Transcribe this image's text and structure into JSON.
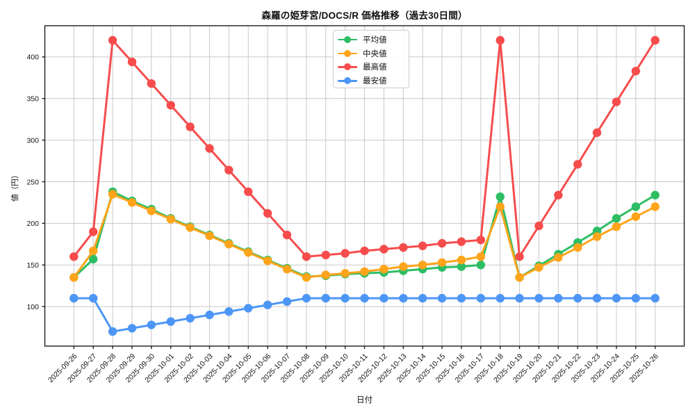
{
  "chart_data": {
    "type": "line",
    "title": "森羅の姫芽宮/DOCS/R 価格推移（過去30日間）",
    "xlabel": "日付",
    "ylabel": "値（円）",
    "x": [
      "2025-09-26",
      "2025-09-27",
      "2025-09-28",
      "2025-09-29",
      "2025-09-30",
      "2025-10-01",
      "2025-10-02",
      "2025-10-03",
      "2025-10-04",
      "2025-10-05",
      "2025-10-06",
      "2025-10-07",
      "2025-10-08",
      "2025-10-09",
      "2025-10-10",
      "2025-10-11",
      "2025-10-12",
      "2025-10-13",
      "2025-10-14",
      "2025-10-15",
      "2025-10-16",
      "2025-10-17",
      "2025-10-18",
      "2025-10-19",
      "2025-10-20",
      "2025-10-21",
      "2025-10-22",
      "2025-10-23",
      "2025-10-24",
      "2025-10-25",
      "2025-10-26"
    ],
    "series": [
      {
        "name": "平均値",
        "key": "average",
        "color": "#2dbe64",
        "values": [
          135,
          157,
          238,
          227,
          217,
          206,
          196,
          186,
          176,
          166,
          156,
          146,
          136,
          137,
          139,
          140,
          141,
          143,
          145,
          147,
          148,
          150,
          232,
          135,
          149,
          163,
          177,
          191,
          206,
          220,
          234
        ]
      },
      {
        "name": "中央値",
        "key": "median",
        "color": "#ffa41b",
        "values": [
          135,
          167,
          235,
          225,
          215,
          205,
          195,
          185,
          175,
          165,
          155,
          145,
          135,
          138,
          140,
          142,
          145,
          148,
          150,
          153,
          156,
          160,
          220,
          135,
          147,
          159,
          171,
          184,
          196,
          208,
          220
        ]
      },
      {
        "name": "最高値",
        "key": "max",
        "color": "#f64c4c",
        "values": [
          160,
          190,
          420,
          394,
          368,
          342,
          316,
          290,
          264,
          238,
          212,
          186,
          160,
          162,
          164,
          167,
          169,
          171,
          173,
          176,
          178,
          180,
          420,
          160,
          197,
          234,
          271,
          309,
          346,
          383,
          420
        ]
      },
      {
        "name": "最安値",
        "key": "min",
        "color": "#4d96f6",
        "values": [
          110,
          110,
          70,
          74,
          78,
          82,
          86,
          90,
          94,
          98,
          102,
          106,
          110,
          110,
          110,
          110,
          110,
          110,
          110,
          110,
          110,
          110,
          110,
          110,
          110,
          110,
          110,
          110,
          110,
          110,
          110
        ]
      }
    ],
    "yticks": [
      100,
      150,
      200,
      250,
      300,
      350,
      400
    ],
    "ylim": [
      52.5,
      437.5
    ],
    "grid": true,
    "legend_position": "upper center inside",
    "colors": {
      "grid": "#c8c8c8",
      "spine": "#1c1c1c",
      "tick_text": "#111111",
      "background": "#ffffff"
    }
  }
}
